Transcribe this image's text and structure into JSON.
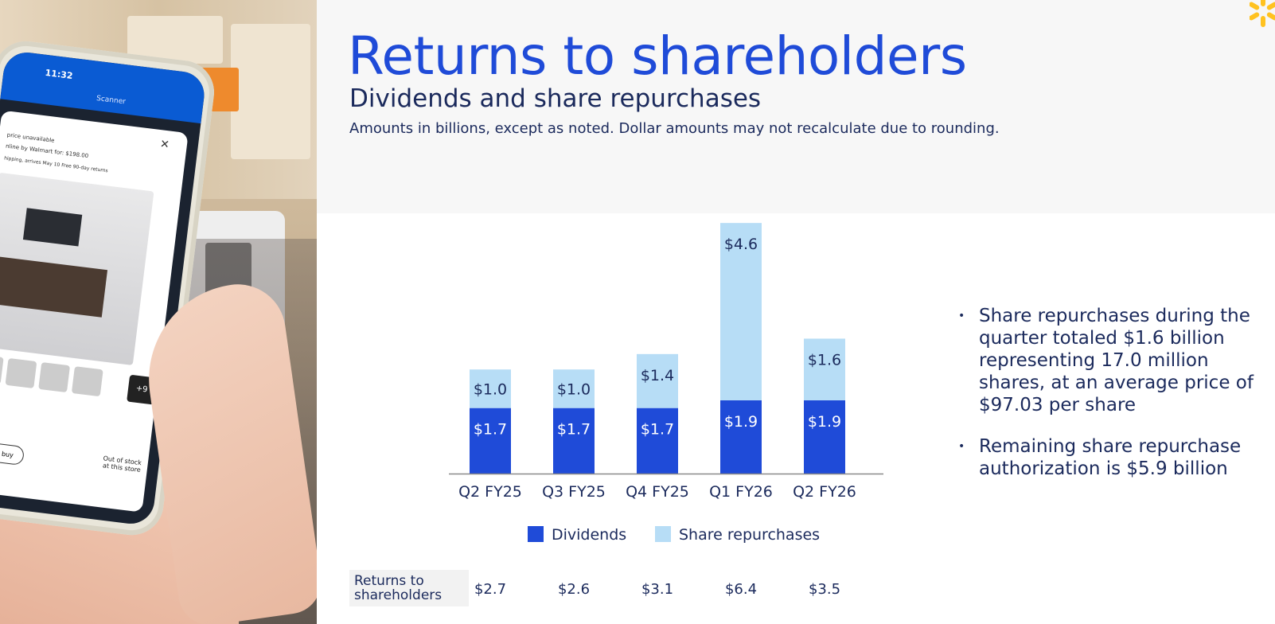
{
  "header": {
    "title": "Returns to shareholders",
    "subtitle": "Dividends and share repurchases",
    "note": "Amounts in billions, except as noted. Dollar amounts may not recalculate due to rounding."
  },
  "colors": {
    "dividends": "#1f4bd8",
    "share_repurchases": "#b7ddf6",
    "title": "#1f4bd8",
    "text": "#1b2a5c",
    "spark": "#ffc220"
  },
  "photo": {
    "phone_time": "11:32",
    "phone_title": "Scanner",
    "lines": [
      "price unavailable",
      "nline by Walmart for: $198.00",
      "hipping, arrives May 10   Free 90-day returns"
    ],
    "more_count": "+9",
    "buy_label": "o buy",
    "stock_line1": "Out of stock",
    "stock_line2": "at this store"
  },
  "chart_data": {
    "type": "bar",
    "stacked": true,
    "categories": [
      "Q2 FY25",
      "Q3 FY25",
      "Q4 FY25",
      "Q1 FY26",
      "Q2 FY26"
    ],
    "series": [
      {
        "name": "Dividends",
        "values": [
          1.7,
          1.7,
          1.7,
          1.9,
          1.9
        ],
        "labels": [
          "$1.7",
          "$1.7",
          "$1.7",
          "$1.9",
          "$1.9"
        ]
      },
      {
        "name": "Share repurchases",
        "values": [
          1.0,
          1.0,
          1.4,
          4.6,
          1.6
        ],
        "labels": [
          "$1.0",
          "$1.0",
          "$1.4",
          "$4.6",
          "$1.6"
        ]
      }
    ],
    "ylim": [
      0,
      6.4
    ],
    "grid": false,
    "legend": "bottom"
  },
  "table": {
    "label": "Returns to shareholders",
    "values": [
      "$2.7",
      "$2.6",
      "$3.1",
      "$6.4",
      "$3.5"
    ]
  },
  "bullets": [
    "Share repurchases during the quarter totaled $1.6 billion representing 17.0 million shares, at an average price of $97.03 per share",
    "Remaining share repurchase authorization is $5.9 billion"
  ]
}
